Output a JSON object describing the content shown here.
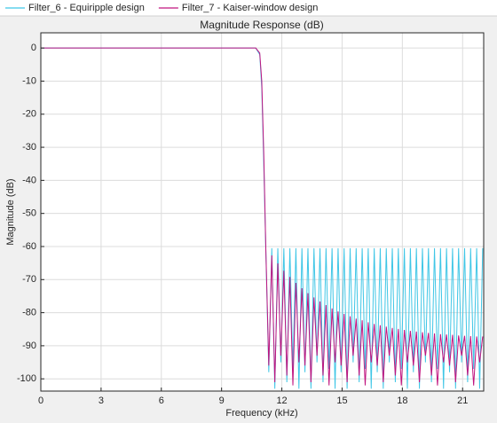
{
  "chart_data": {
    "type": "line",
    "title": "Magnitude Response (dB)",
    "x_label": "Frequency (kHz)",
    "y_label": "Magnitude (dB)",
    "x": [
      0,
      10.7,
      10.9,
      11.0,
      11.1,
      11.2,
      11.35,
      11.5,
      11.65,
      11.8,
      11.95,
      12.1,
      12.25,
      12.4,
      12.55,
      12.7,
      12.85,
      13.0,
      13.15,
      13.3,
      13.45,
      13.6,
      13.75,
      13.9,
      14.05,
      14.2,
      14.35,
      14.5,
      14.65,
      14.8,
      14.95,
      15.1,
      15.25,
      15.4,
      15.55,
      15.7,
      15.85,
      16.0,
      16.15,
      16.3,
      16.45,
      16.6,
      16.75,
      16.9,
      17.05,
      17.2,
      17.35,
      17.5,
      17.65,
      17.8,
      17.95,
      18.1,
      18.25,
      18.4,
      18.55,
      18.7,
      18.85,
      19.0,
      19.15,
      19.3,
      19.45,
      19.6,
      19.75,
      19.9,
      20.05,
      20.2,
      20.35,
      20.5,
      20.65,
      20.8,
      20.95,
      21.1,
      21.25,
      21.4,
      21.55,
      21.7,
      21.85,
      22.0
    ],
    "series": [
      {
        "name": "Filter_6 - Equiripple design",
        "color": "#3fc6e6",
        "values": [
          0,
          0,
          -2,
          -12,
          -35,
          -60.5,
          -98,
          -60.5,
          -103,
          -60.5,
          -95,
          -60.5,
          -101,
          -60.5,
          -97,
          -60.5,
          -103,
          -60.5,
          -98,
          -60.5,
          -103,
          -60.5,
          -95,
          -60.5,
          -101,
          -60.5,
          -97,
          -60.5,
          -103,
          -60.5,
          -98,
          -60.5,
          -103,
          -60.5,
          -95,
          -60.5,
          -101,
          -60.5,
          -97,
          -60.5,
          -103,
          -60.5,
          -98,
          -60.5,
          -103,
          -60.5,
          -95,
          -60.5,
          -101,
          -60.5,
          -97,
          -60.5,
          -103,
          -60.5,
          -98,
          -60.5,
          -103,
          -60.5,
          -95,
          -60.5,
          -101,
          -60.5,
          -97,
          -60.5,
          -103,
          -60.5,
          -98,
          -60.5,
          -103,
          -60.5,
          -95,
          -60.5,
          -101,
          -60.5,
          -97,
          -60.5,
          -103,
          -60.5
        ]
      },
      {
        "name": "Filter_7 - Kaiser-window design",
        "color": "#c0147f",
        "values": [
          0,
          0,
          -1.5,
          -10,
          -32,
          -60,
          -96,
          -62.7,
          -101,
          -65.1,
          -93,
          -67.3,
          -99,
          -69.2,
          -102,
          -71,
          -95,
          -72.6,
          -96,
          -74.1,
          -101,
          -75.4,
          -93,
          -76.6,
          -99,
          -77.7,
          -102,
          -78.7,
          -95,
          -79.6,
          -96,
          -80.4,
          -101,
          -81.1,
          -93,
          -81.8,
          -99,
          -82.3,
          -102,
          -82.9,
          -95,
          -83.4,
          -96,
          -83.8,
          -101,
          -84.2,
          -93,
          -84.6,
          -99,
          -84.9,
          -102,
          -85.2,
          -95,
          -85.5,
          -96,
          -85.7,
          -101,
          -85.9,
          -93,
          -86.1,
          -99,
          -86.3,
          -102,
          -86.5,
          -95,
          -86.6,
          -96,
          -86.7,
          -101,
          -86.9,
          -93,
          -87,
          -99,
          -87.1,
          -102,
          -87.2,
          -95,
          -87.2
        ]
      }
    ],
    "xlim": [
      0,
      22.05
    ],
    "xticks": [
      0,
      3,
      6,
      9,
      12,
      15,
      18,
      21
    ],
    "ylim": [
      -103.7,
      4.6
    ],
    "yticks": [
      0,
      -10,
      -20,
      -30,
      -40,
      -50,
      -60,
      -70,
      -80,
      -90,
      -100
    ],
    "grid": true
  }
}
